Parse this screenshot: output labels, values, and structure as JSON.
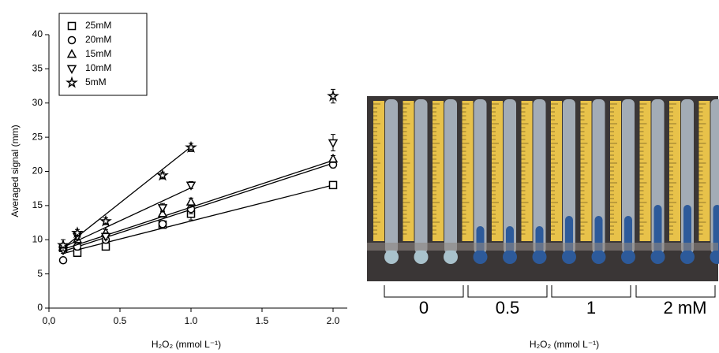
{
  "chart_data": {
    "type": "scatter",
    "xlabel": "H₂O₂ (mmol L⁻¹)",
    "ylabel": "Averaged signal (mm)",
    "x": [
      0.1,
      0.2,
      0.4,
      0.8,
      1.0,
      2.0
    ],
    "xlim": [
      0,
      2.1
    ],
    "ylim": [
      0,
      40
    ],
    "xticks": [
      {
        "value": 0,
        "label": "0,0"
      },
      0.5,
      {
        "value": 1.0,
        "label": "1.0"
      },
      1.5,
      {
        "value": 2.0,
        "label": "2.0"
      }
    ],
    "yticks": [
      0,
      5,
      10,
      15,
      20,
      25,
      30,
      35,
      40
    ],
    "legend": "upper left",
    "series": [
      {
        "name": "25mM",
        "marker": "square",
        "color": "#000000",
        "values": [
          8.8,
          8.1,
          9.0,
          12.2,
          13.8,
          18.0
        ],
        "errors": [
          0.5,
          0.5,
          0.5,
          0.5,
          0.9,
          0.4
        ],
        "fit_x": [
          0.1,
          2.0
        ],
        "fit_y": [
          8.0,
          18.0
        ]
      },
      {
        "name": "20mM",
        "marker": "circle",
        "color": "#000000",
        "values": [
          7.0,
          9.0,
          10.0,
          12.3,
          14.5,
          21.0
        ],
        "errors": [
          0.4,
          0.5,
          0.5,
          0.5,
          0.7,
          0.5
        ],
        "fit_x": [
          0.1,
          2.0
        ],
        "fit_y": [
          8.3,
          21.2
        ]
      },
      {
        "name": "15mM",
        "marker": "triangle",
        "color": "#000000",
        "values": [
          8.9,
          10.0,
          11.0,
          13.8,
          15.5,
          21.8
        ],
        "errors": [
          0.5,
          0.5,
          0.5,
          0.5,
          0.6,
          0.5
        ],
        "fit_x": [
          0.1,
          2.0
        ],
        "fit_y": [
          8.6,
          21.6
        ]
      },
      {
        "name": "10mM",
        "marker": "triangle-down",
        "color": "#000000",
        "values": [
          8.5,
          10.5,
          10.5,
          14.7,
          18.0,
          24.2
        ],
        "errors": [
          0.5,
          0.5,
          0.5,
          0.6,
          0.5,
          1.2
        ],
        "fit_x": [
          0.1,
          1.0
        ],
        "fit_y": [
          8.9,
          17.6
        ]
      },
      {
        "name": "5mM",
        "marker": "star",
        "color": "#000000",
        "values": [
          9.2,
          11.0,
          12.7,
          19.4,
          23.5,
          31.0
        ],
        "errors": [
          0.8,
          0.5,
          0.5,
          0.5,
          0.6,
          1.0
        ],
        "fit_x": [
          0.1,
          1.0
        ],
        "fit_y": [
          8.8,
          23.6
        ]
      }
    ]
  },
  "photo": {
    "groups": [
      "0",
      "0.5",
      "1",
      "2 mM"
    ],
    "xlabel": "H₂O₂ (mmol L⁻¹)"
  }
}
